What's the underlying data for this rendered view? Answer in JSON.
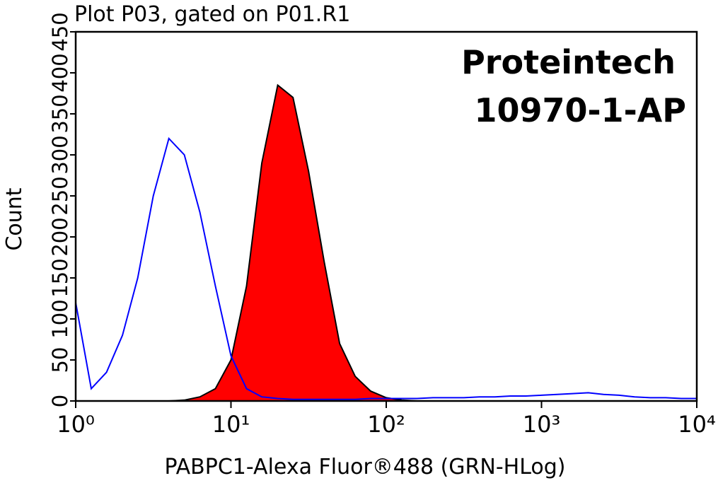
{
  "chart_data": {
    "type": "histogram",
    "title": "Plot P03, gated on P01.R1",
    "annotations": [
      "Proteintech",
      "10970-1-AP"
    ],
    "x_label": "PABPC1-Alexa Fluor®488 (GRN-HLog)",
    "y_label": "Count",
    "xscale": "log",
    "xlim": [
      1,
      10000
    ],
    "xticks": [
      {
        "value": 1,
        "label": "10⁰"
      },
      {
        "value": 10,
        "label": "10¹"
      },
      {
        "value": 100,
        "label": "10²"
      },
      {
        "value": 1000,
        "label": "10³"
      },
      {
        "value": 10000,
        "label": "10⁴"
      }
    ],
    "ylim": [
      0,
      450
    ],
    "yticks": [
      0,
      50,
      100,
      150,
      200,
      250,
      300,
      350,
      400,
      450
    ],
    "x": [
      1,
      1.26,
      1.58,
      2,
      2.51,
      3.16,
      3.98,
      5.01,
      6.31,
      7.94,
      10,
      12.6,
      15.8,
      20,
      25.1,
      31.6,
      39.8,
      50.1,
      63.1,
      79.4,
      100,
      126,
      158,
      200,
      251,
      316,
      398,
      501,
      631,
      794,
      1000,
      1260,
      1580,
      2000,
      2510,
      3160,
      3980,
      5010,
      6310,
      7940,
      10000
    ],
    "series": [
      {
        "style": "area",
        "color": "#ff0000",
        "values": [
          0,
          0,
          0,
          0,
          0,
          0,
          0,
          1,
          5,
          15,
          50,
          140,
          290,
          385,
          370,
          280,
          170,
          70,
          30,
          12,
          4,
          1,
          0,
          0,
          0,
          0,
          0,
          0,
          0,
          0,
          0,
          0,
          0,
          0,
          0,
          0,
          0,
          0,
          0,
          0,
          0
        ]
      },
      {
        "style": "line",
        "color": "#0000ff",
        "values": [
          120,
          15,
          35,
          80,
          150,
          250,
          320,
          300,
          230,
          140,
          55,
          15,
          5,
          3,
          2,
          2,
          2,
          2,
          2,
          3,
          3,
          3,
          3,
          4,
          4,
          4,
          5,
          5,
          6,
          6,
          7,
          8,
          9,
          10,
          8,
          7,
          5,
          4,
          4,
          3,
          3
        ]
      }
    ]
  }
}
